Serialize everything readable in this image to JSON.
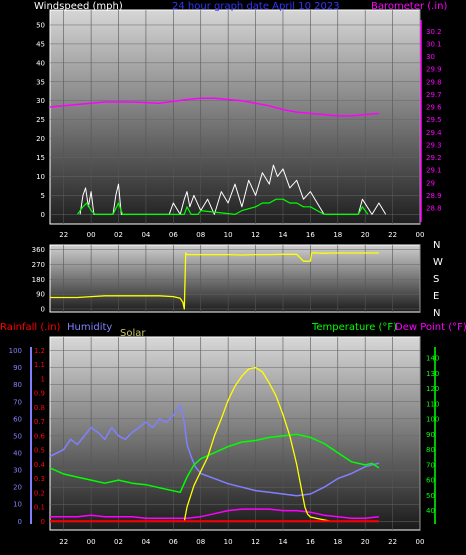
{
  "header": {
    "windspeed": "Windspeed (mph)",
    "title": "24 hour graph date   April 10 2023",
    "barometer": "Barometer (.in)"
  },
  "bottom_header": {
    "rainfall": "Rainfall (.in)",
    "humidity": "Humidity",
    "solar": "Solar",
    "temperature": "Temperature (°F)",
    "dewpoint": "Dew Point (°F)"
  },
  "compass": [
    "N",
    "W",
    "S",
    "E",
    "N"
  ],
  "colors": {
    "wind": "#ffffff",
    "wind_avg": "#00ff00",
    "barometer": "#ff00ff",
    "direction": "#ffff00",
    "rain": "#ff0000",
    "humidity": "#8080ff",
    "solar": "#ffff00",
    "temperature": "#00ff00",
    "dewpoint": "#ff00ff",
    "solar_label": "#c8c864"
  },
  "chart_data": [
    {
      "type": "line",
      "name": "wind-barometer",
      "x_unit": "hour",
      "x_ticks": [
        "22",
        "00",
        "02",
        "04",
        "06",
        "08",
        "10",
        "12",
        "14",
        "16",
        "18",
        "20",
        "22",
        "00"
      ],
      "left_axis": {
        "label": "Windspeed (mph)",
        "ticks": [
          0,
          5,
          10,
          15,
          20,
          25,
          30,
          35,
          40,
          45,
          50
        ],
        "ylim": [
          0,
          50
        ]
      },
      "right_axis": {
        "label": "Barometer (.in)",
        "ticks": [
          "28.8",
          "28.9",
          "29",
          "29.1",
          "29.2",
          "29.3",
          "29.4",
          "29.5",
          "29.6",
          "29.7",
          "29.8",
          "29.9",
          "30",
          "30.1",
          "30.2"
        ],
        "ylim": [
          28.75,
          30.25
        ]
      },
      "series": [
        {
          "name": "barometer",
          "axis": "right",
          "x": [
            -3,
            -1,
            1,
            3,
            5,
            7,
            8,
            9,
            10,
            11,
            12,
            13,
            14,
            15,
            16,
            17,
            18,
            19,
            20,
            21
          ],
          "y": [
            29.6,
            29.62,
            29.64,
            29.64,
            29.63,
            29.66,
            29.67,
            29.67,
            29.66,
            29.65,
            29.63,
            29.61,
            29.58,
            29.56,
            29.55,
            29.54,
            29.53,
            29.53,
            29.54,
            29.55
          ]
        },
        {
          "name": "gust",
          "axis": "left",
          "x": [
            -0.8,
            -0.6,
            -0.4,
            -0.2,
            0,
            0.2,
            1.6,
            1.8,
            2,
            2.2,
            5.7,
            6,
            6.5,
            6.8,
            7,
            7.2,
            7.5,
            8,
            8.5,
            9,
            9.5,
            10,
            10.5,
            11,
            11.5,
            12,
            12.5,
            13,
            13.3,
            13.6,
            14,
            14.5,
            15,
            15.5,
            16,
            16.5,
            17,
            19.5,
            19.8,
            20.5,
            21,
            21.5
          ],
          "y": [
            0,
            5,
            7,
            2,
            6,
            0,
            0,
            5,
            8,
            0,
            0,
            3,
            0,
            4,
            6,
            2,
            5,
            1,
            4,
            0,
            6,
            3,
            8,
            2,
            9,
            5,
            11,
            8,
            13,
            10,
            12,
            7,
            9,
            4,
            6,
            3,
            0,
            0,
            4,
            0,
            3,
            0
          ]
        },
        {
          "name": "average",
          "axis": "left",
          "x": [
            -1,
            -0.6,
            -0.3,
            0,
            0.3,
            1.6,
            2,
            2.3,
            6.8,
            7,
            7.3,
            7.8,
            8,
            10.5,
            11,
            12,
            12.5,
            13,
            13.5,
            14,
            14.5,
            15,
            15.5,
            16,
            16.5,
            17,
            19.5,
            19.8,
            20.2
          ],
          "y": [
            0,
            2,
            3,
            1,
            0,
            0,
            3,
            0,
            0,
            2,
            0,
            0,
            1,
            0,
            1,
            2,
            3,
            3,
            4,
            4,
            3,
            3,
            2,
            2,
            1,
            0,
            0,
            2,
            0
          ]
        }
      ]
    },
    {
      "type": "line",
      "name": "wind-direction",
      "x_unit": "hour",
      "left_axis": {
        "ticks": [
          0,
          90,
          180,
          270,
          360
        ],
        "ylim": [
          0,
          360
        ]
      },
      "series": [
        {
          "name": "direction",
          "x": [
            -3,
            -1,
            0,
            1,
            5,
            6,
            6.5,
            6.7,
            6.8,
            6.9,
            7,
            10,
            11,
            12,
            13,
            14,
            15,
            15.5,
            16,
            16.1,
            16.3,
            16.5,
            17,
            17.5,
            21
          ],
          "y": [
            70,
            70,
            75,
            80,
            80,
            75,
            65,
            40,
            0,
            340,
            330,
            330,
            328,
            330,
            330,
            332,
            332,
            290,
            290,
            340,
            342,
            340,
            338,
            340,
            340
          ]
        }
      ]
    },
    {
      "type": "line",
      "name": "rain-humidity-solar-temperature",
      "x_unit": "hour",
      "x_ticks": [
        "22",
        "00",
        "02",
        "04",
        "06",
        "08",
        "10",
        "12",
        "14",
        "16",
        "18",
        "20",
        "22",
        "00"
      ],
      "left_axis_humidity": {
        "label": "Humidity",
        "ticks": [
          0,
          10,
          20,
          30,
          40,
          50,
          60,
          70,
          80,
          90,
          100
        ],
        "ylim": [
          0,
          100
        ]
      },
      "left_axis_rain": {
        "label": "Rainfall (.in)",
        "ticks": [
          "0",
          "0.1",
          "0.2",
          "0.3",
          "0.4",
          "0.5",
          "0.6",
          "0.7",
          "0.8",
          "0.9",
          "1",
          "1.1",
          "1.2"
        ],
        "ylim": [
          0,
          1.2
        ]
      },
      "right_axis": {
        "label": "Temperature (°F)",
        "ticks": [
          40,
          50,
          60,
          70,
          80,
          90,
          100,
          110,
          120,
          130,
          140
        ],
        "ylim": [
          33,
          145
        ]
      },
      "series": [
        {
          "name": "humidity",
          "axis": "humidity",
          "x": [
            -3,
            -2,
            -1.5,
            -1,
            -0.5,
            0,
            0.5,
            1,
            1.5,
            2,
            2.5,
            3,
            3.5,
            4,
            4.5,
            5,
            5.5,
            6,
            6.5,
            6.8,
            7,
            7.3,
            7.6,
            8,
            9,
            10,
            11,
            12,
            13,
            14,
            15,
            16,
            17,
            18,
            19,
            20,
            21
          ],
          "y": [
            38,
            42,
            48,
            45,
            50,
            55,
            52,
            48,
            55,
            50,
            48,
            52,
            55,
            58,
            55,
            60,
            58,
            62,
            68,
            58,
            45,
            38,
            32,
            28,
            25,
            22,
            20,
            18,
            17,
            16,
            15,
            16,
            20,
            25,
            28,
            32,
            34
          ]
        },
        {
          "name": "temperature",
          "axis": "right",
          "x": [
            -3,
            -2,
            -1,
            0,
            1,
            2,
            3,
            4,
            5,
            6,
            6.5,
            7,
            7.5,
            8,
            9,
            10,
            11,
            12,
            13,
            14,
            15,
            16,
            17,
            18,
            19,
            20,
            20.5,
            21
          ],
          "y": [
            68,
            64,
            62,
            60,
            58,
            60,
            58,
            57,
            55,
            53,
            52,
            62,
            70,
            74,
            78,
            82,
            85,
            86,
            88,
            89,
            90,
            88,
            84,
            78,
            72,
            70,
            71,
            68
          ]
        },
        {
          "name": "dew_point",
          "axis": "right",
          "x": [
            -3,
            -2,
            -1,
            0,
            1,
            2,
            3,
            4,
            5,
            6,
            7,
            8,
            9,
            10,
            11,
            12,
            13,
            14,
            15,
            16,
            17,
            18,
            19,
            20,
            21
          ],
          "y": [
            36,
            36,
            36,
            37,
            36,
            36,
            36,
            35,
            35,
            35,
            35,
            36,
            38,
            40,
            41,
            41,
            41,
            40,
            40,
            39,
            37,
            36,
            35,
            35,
            36
          ]
        },
        {
          "name": "solar",
          "axis": "rain",
          "x": [
            6.8,
            7,
            7.5,
            8,
            8.5,
            9,
            9.5,
            10,
            10.5,
            11,
            11.5,
            12,
            12.5,
            13,
            13.5,
            14,
            14.5,
            15,
            15.3,
            15.6,
            15.8,
            16,
            16.5,
            17,
            17.5,
            18
          ],
          "y": [
            0,
            0.1,
            0.25,
            0.35,
            0.45,
            0.6,
            0.72,
            0.85,
            0.95,
            1.02,
            1.07,
            1.08,
            1.05,
            0.97,
            0.88,
            0.75,
            0.6,
            0.4,
            0.25,
            0.1,
            0.05,
            0.03,
            0.02,
            0.01,
            0,
            0
          ]
        },
        {
          "name": "rain",
          "axis": "rain",
          "x": [
            -3,
            21
          ],
          "y": [
            0,
            0
          ]
        }
      ]
    }
  ]
}
